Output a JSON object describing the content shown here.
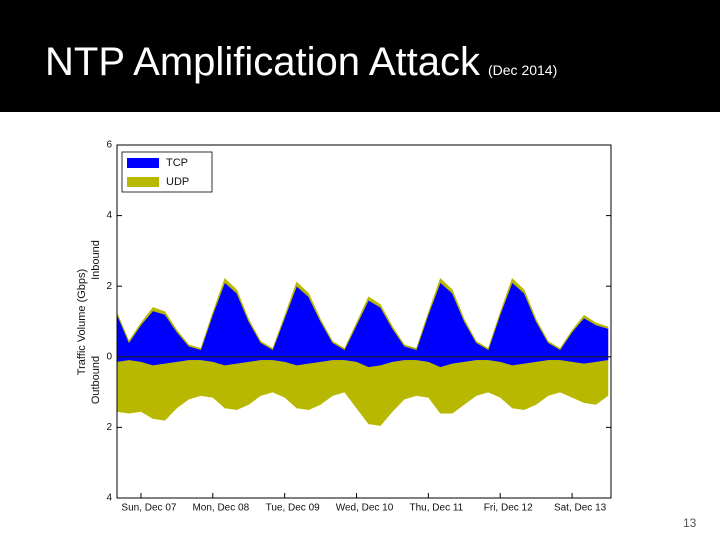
{
  "title": "NTP Amplification Attack",
  "subtitle": "(Dec 2014)",
  "page_number": "13",
  "chart_data": {
    "type": "mirrored_area",
    "y_label": "Traffic Volume (Gbps)",
    "y_label_top": "Inbound",
    "y_label_bottom": "Outbound",
    "x": [
      -8,
      -4,
      0,
      4,
      8,
      12,
      16,
      20,
      24,
      28,
      32,
      36,
      40,
      44,
      48,
      52,
      56,
      60,
      64,
      68,
      72,
      76,
      80,
      84,
      88,
      92,
      96,
      100,
      104,
      108,
      112,
      116,
      120,
      124,
      128,
      132,
      136,
      140,
      144,
      148,
      152,
      156
    ],
    "xlim": [
      -8,
      157
    ],
    "xticks": [
      {
        "value": 0,
        "label": "Sun, Dec 07"
      },
      {
        "value": 24,
        "label": "Mon, Dec 08"
      },
      {
        "value": 48,
        "label": "Tue, Dec 09"
      },
      {
        "value": 72,
        "label": "Wed, Dec 10"
      },
      {
        "value": 96,
        "label": "Thu, Dec 11"
      },
      {
        "value": 120,
        "label": "Fri, Dec 12"
      },
      {
        "value": 144,
        "label": "Sat, Dec 13"
      }
    ],
    "ylim": [
      -4,
      6
    ],
    "yticks": [
      6,
      4,
      2,
      0,
      {
        "value": -2,
        "label": "2"
      },
      {
        "value": -4,
        "label": "4"
      }
    ],
    "legend": "upper left",
    "series": [
      {
        "name": "TCP",
        "color": "#0000ff",
        "inbound": [
          1.2,
          0.4,
          0.9,
          1.3,
          1.2,
          0.7,
          0.3,
          0.2,
          1.2,
          2.1,
          1.8,
          1.0,
          0.4,
          0.2,
          1.1,
          2.0,
          1.7,
          1.0,
          0.4,
          0.2,
          0.9,
          1.6,
          1.4,
          0.8,
          0.3,
          0.2,
          1.2,
          2.1,
          1.8,
          1.0,
          0.4,
          0.2,
          1.2,
          2.1,
          1.8,
          1.0,
          0.4,
          0.2,
          0.7,
          1.1,
          0.9,
          0.8
        ],
        "outbound": [
          -0.15,
          -0.1,
          -0.15,
          -0.25,
          -0.2,
          -0.15,
          -0.1,
          -0.1,
          -0.15,
          -0.25,
          -0.2,
          -0.15,
          -0.1,
          -0.1,
          -0.15,
          -0.25,
          -0.2,
          -0.15,
          -0.1,
          -0.1,
          -0.15,
          -0.3,
          -0.25,
          -0.15,
          -0.1,
          -0.1,
          -0.15,
          -0.3,
          -0.2,
          -0.15,
          -0.1,
          -0.1,
          -0.15,
          -0.25,
          -0.2,
          -0.15,
          -0.1,
          -0.1,
          -0.15,
          -0.2,
          -0.15,
          -0.1
        ]
      },
      {
        "name": "UDP",
        "color": "#b8b800",
        "inbound": [
          0.05,
          0.05,
          0.06,
          0.1,
          0.08,
          0.06,
          0.04,
          0.04,
          0.06,
          0.12,
          0.1,
          0.06,
          0.04,
          0.04,
          0.06,
          0.12,
          0.1,
          0.06,
          0.04,
          0.04,
          0.06,
          0.1,
          0.08,
          0.06,
          0.04,
          0.04,
          0.06,
          0.12,
          0.1,
          0.06,
          0.04,
          0.04,
          0.06,
          0.12,
          0.1,
          0.06,
          0.04,
          0.04,
          0.05,
          0.08,
          0.06,
          0.05
        ],
        "outbound": [
          -1.4,
          -1.5,
          -1.4,
          -1.5,
          -1.6,
          -1.3,
          -1.1,
          -1.0,
          -1.0,
          -1.2,
          -1.3,
          -1.2,
          -1.0,
          -0.9,
          -1.0,
          -1.2,
          -1.3,
          -1.2,
          -1.0,
          -0.9,
          -1.3,
          -1.6,
          -1.7,
          -1.4,
          -1.1,
          -1.0,
          -1.0,
          -1.3,
          -1.4,
          -1.2,
          -1.0,
          -0.9,
          -1.0,
          -1.2,
          -1.3,
          -1.2,
          -1.0,
          -0.9,
          -1.0,
          -1.1,
          -1.2,
          -1.0
        ]
      }
    ]
  }
}
